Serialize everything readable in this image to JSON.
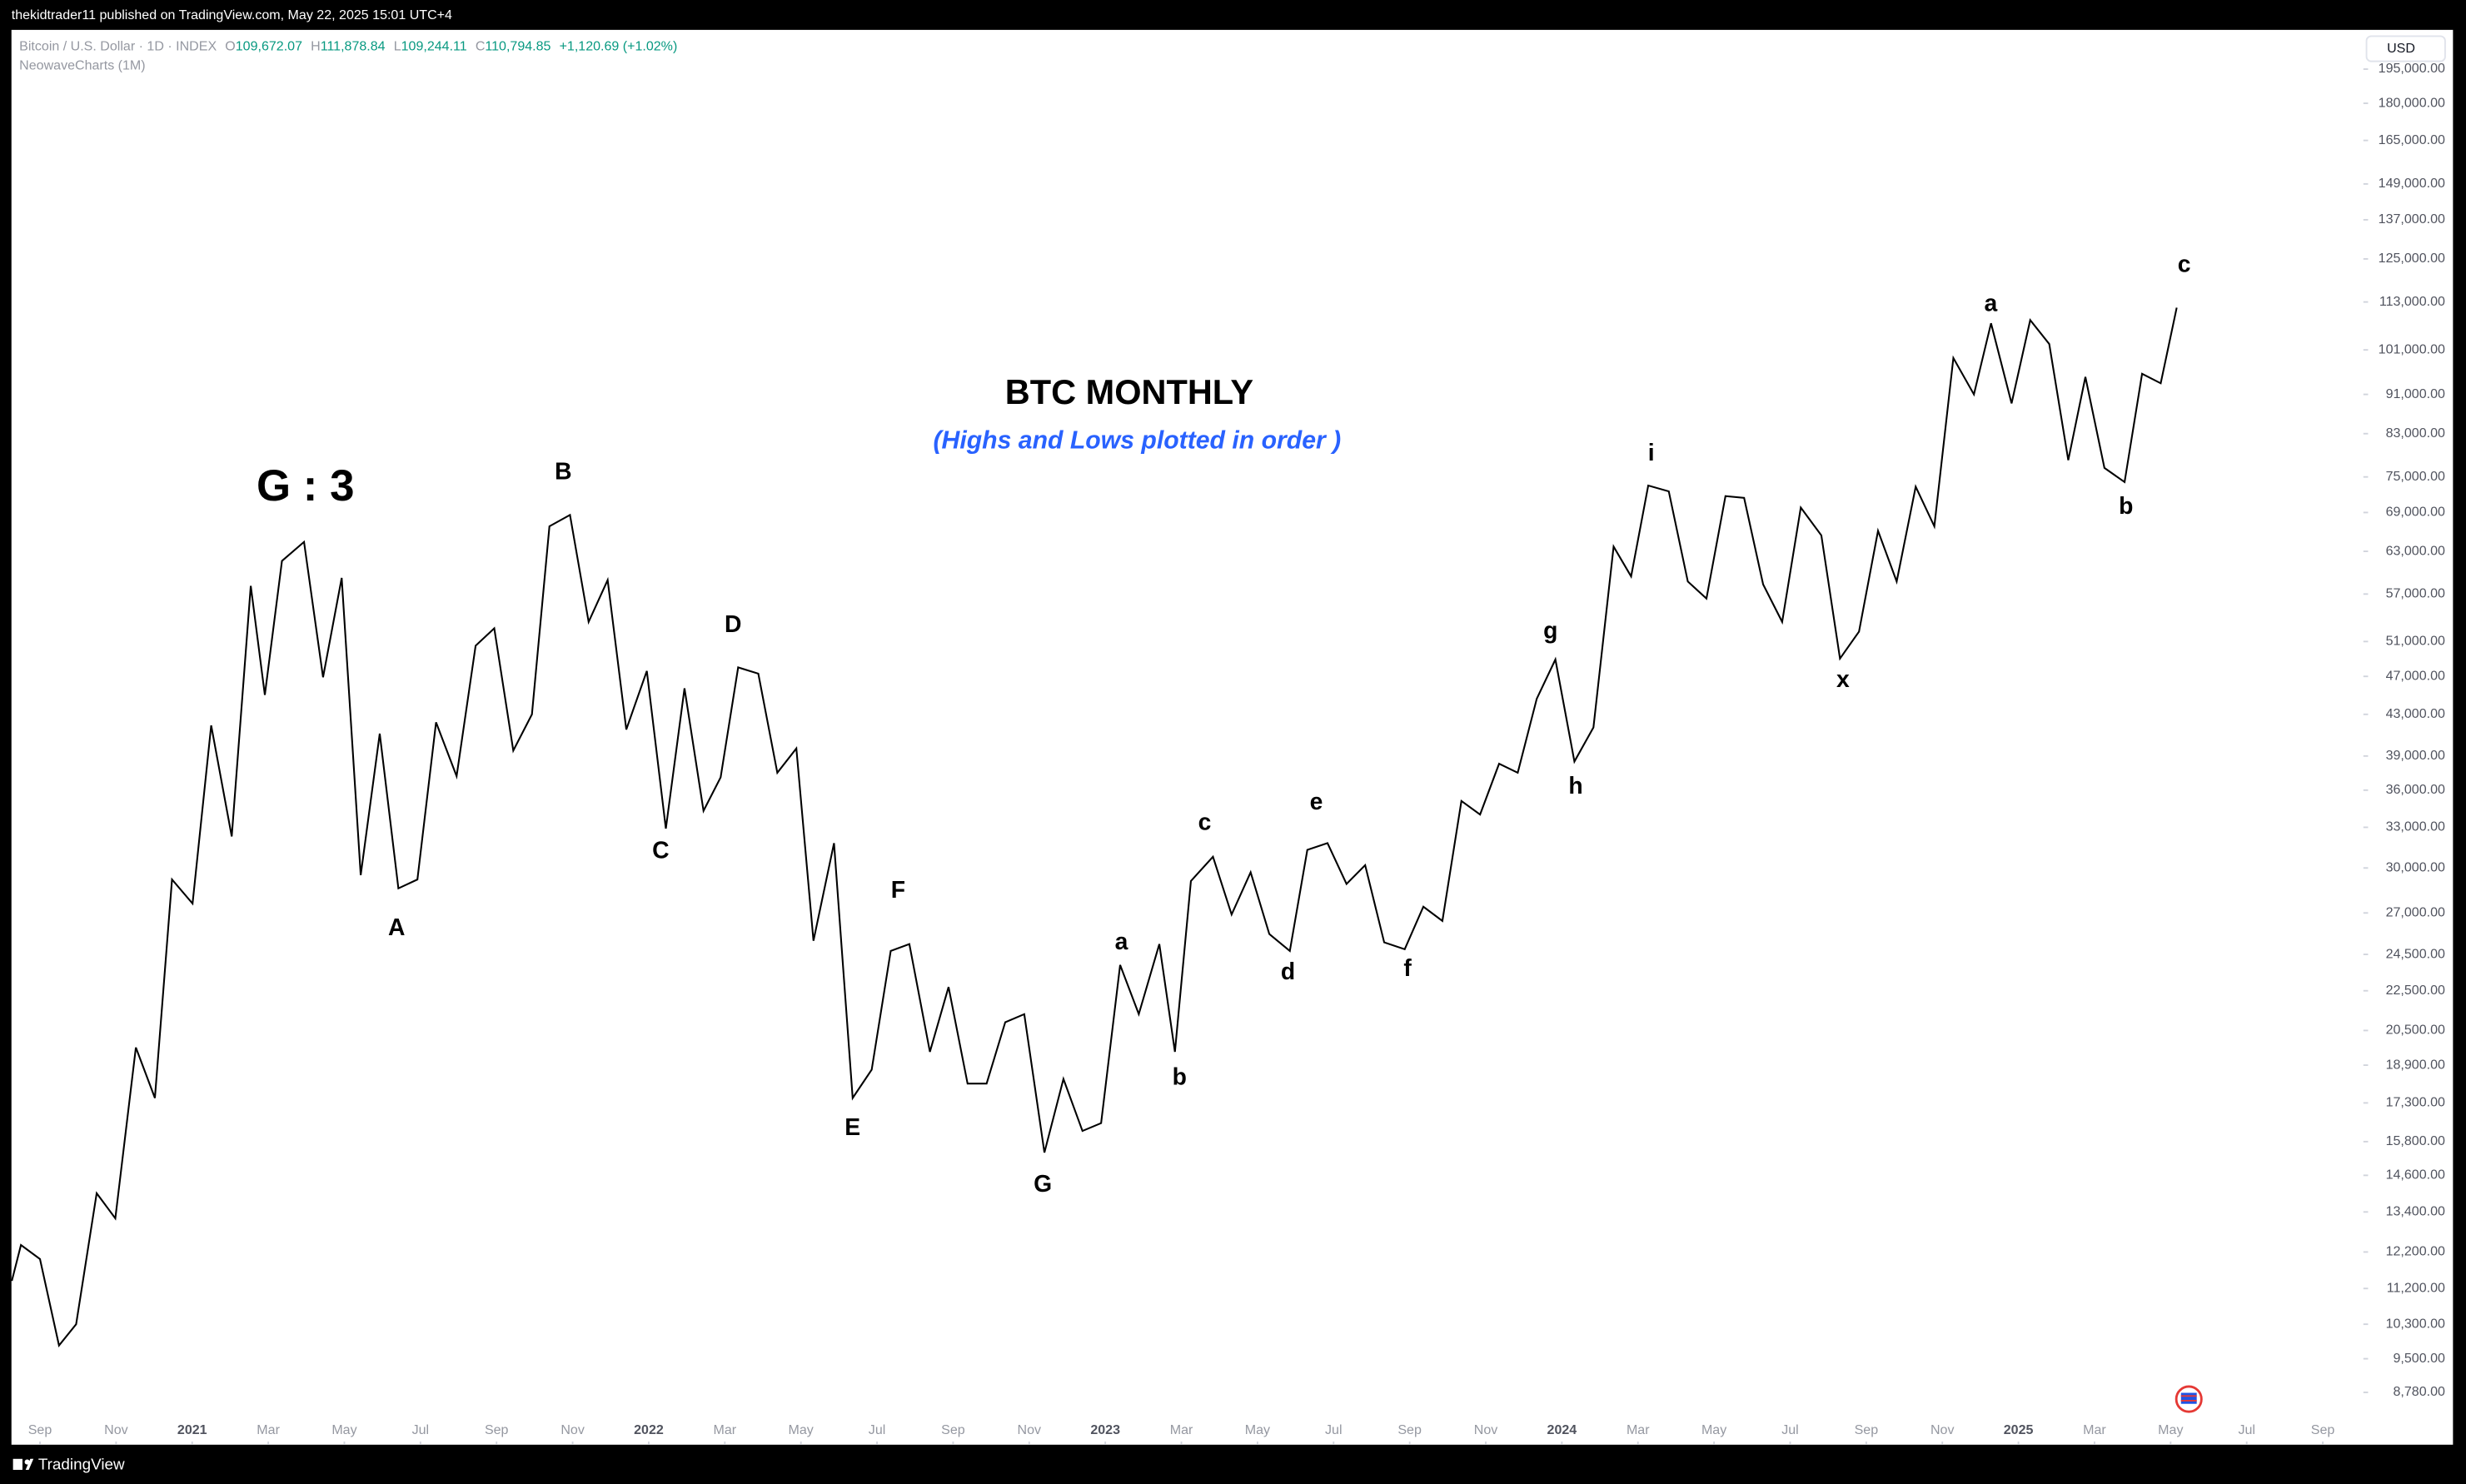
{
  "header": {
    "published": "thekidtrader11 published on TradingView.com, May 22, 2025 15:01 UTC+4",
    "symbol": "Bitcoin / U.S. Dollar · 1D · INDEX",
    "ohlc": [
      {
        "label": "O",
        "value": "109,672.07"
      },
      {
        "label": "H",
        "value": "111,878.84"
      },
      {
        "label": "L",
        "value": "109,244.11"
      },
      {
        "label": "C",
        "value": "110,794.85"
      }
    ],
    "change": "+1,120.69 (+1.02%)",
    "indicator": "NeowaveCharts (1M)",
    "currency": "USD"
  },
  "footer": {
    "brand": "TradingView"
  },
  "chart_data": {
    "type": "line",
    "title": "BTC MONTHLY",
    "subtitle": "(Highs and Lows plotted in order )",
    "degree_label": "G : 3",
    "wave_labels": [
      "A",
      "B",
      "C",
      "D",
      "E",
      "F",
      "G",
      "a",
      "b",
      "c",
      "d",
      "e",
      "f",
      "g",
      "h",
      "i",
      "x",
      "a",
      "b",
      "c"
    ],
    "color": "#000000",
    "log_scale": true,
    "grid": false,
    "x": [
      -0.74,
      -0.5,
      0,
      0.5,
      0.95,
      1.49,
      1.98,
      2.52,
      3.02,
      3.47,
      4.01,
      4.5,
      5.04,
      5.54,
      5.91,
      6.36,
      6.94,
      7.44,
      7.93,
      8.43,
      8.93,
      9.42,
      9.92,
      10.41,
      10.95,
      11.45,
      11.94,
      12.44,
      12.93,
      13.39,
      13.93,
      14.42,
      14.92,
      15.41,
      15.95,
      16.45,
      16.94,
      17.44,
      17.89,
      18.35,
      18.88,
      19.38,
      19.88,
      20.33,
      20.87,
      21.36,
      21.86,
      22.36,
      22.85,
      23.39,
      23.88,
      24.38,
      24.88,
      25.37,
      25.87,
      26.4,
      26.9,
      27.4,
      27.89,
      28.39,
      28.88,
      29.42,
      29.83,
      30.25,
      30.83,
      31.32,
      31.82,
      32.31,
      32.85,
      33.31,
      33.84,
      34.34,
      34.83,
      35.33,
      35.87,
      36.36,
      36.86,
      37.36,
      37.85,
      38.35,
      38.84,
      39.34,
      39.83,
      40.33,
      40.83,
      41.36,
      41.82,
      42.27,
      42.81,
      43.31,
      43.8,
      44.3,
      44.79,
      45.29,
      45.79,
      46.28,
      46.82,
      47.31,
      47.81,
      48.31,
      48.8,
      49.3,
      49.79,
      50.29,
      50.83,
      51.28,
      51.82,
      52.31,
      52.81,
      53.31,
      53.76,
      54.26,
      54.79,
      55.25,
      55.74,
      56.16
    ],
    "values": [
      11400,
      12400,
      12000,
      9800,
      10300,
      14000,
      13200,
      19700,
      17500,
      29200,
      27600,
      41900,
      32300,
      58100,
      45000,
      61600,
      64400,
      46900,
      59200,
      29500,
      41100,
      28600,
      29200,
      42200,
      37200,
      50500,
      52600,
      39500,
      43000,
      66800,
      68600,
      53400,
      58900,
      41500,
      47600,
      32900,
      45700,
      34300,
      37100,
      48000,
      47300,
      37500,
      39700,
      25300,
      31800,
      17500,
      18700,
      24700,
      25100,
      19500,
      22700,
      18100,
      18100,
      20900,
      21300,
      15400,
      18300,
      16200,
      16500,
      23900,
      21300,
      25100,
      19500,
      29100,
      30800,
      26900,
      29700,
      25700,
      24700,
      31300,
      31800,
      28900,
      30200,
      25200,
      24800,
      27400,
      26500,
      35100,
      34000,
      38300,
      37500,
      44600,
      48900,
      38500,
      41700,
      63700,
      59400,
      73500,
      72500,
      58700,
      56400,
      71700,
      71400,
      58300,
      53400,
      69800,
      65400,
      49000,
      52200,
      66100,
      58700,
      73300,
      66800,
      99100,
      91000,
      107500,
      89100,
      108300,
      102400,
      78000,
      94800,
      76600,
      74100,
      95500,
      93400,
      111500
    ],
    "xlim": [
      -0.75,
      61
    ],
    "xticks": [
      {
        "value": 0,
        "label": "Sep"
      },
      {
        "value": 2,
        "label": "Nov"
      },
      {
        "value": 4,
        "label": "2021"
      },
      {
        "value": 6,
        "label": "Mar"
      },
      {
        "value": 8,
        "label": "May"
      },
      {
        "value": 10,
        "label": "Jul"
      },
      {
        "value": 12,
        "label": "Sep"
      },
      {
        "value": 14,
        "label": "Nov"
      },
      {
        "value": 16,
        "label": "2022"
      },
      {
        "value": 18,
        "label": "Mar"
      },
      {
        "value": 20,
        "label": "May"
      },
      {
        "value": 22,
        "label": "Jul"
      },
      {
        "value": 24,
        "label": "Sep"
      },
      {
        "value": 26,
        "label": "Nov"
      },
      {
        "value": 28,
        "label": "2023"
      },
      {
        "value": 30,
        "label": "Mar"
      },
      {
        "value": 32,
        "label": "May"
      },
      {
        "value": 34,
        "label": "Jul"
      },
      {
        "value": 36,
        "label": "Sep"
      },
      {
        "value": 38,
        "label": "Nov"
      },
      {
        "value": 40,
        "label": "2024"
      },
      {
        "value": 42,
        "label": "Mar"
      },
      {
        "value": 44,
        "label": "May"
      },
      {
        "value": 46,
        "label": "Jul"
      },
      {
        "value": 48,
        "label": "Sep"
      },
      {
        "value": 50,
        "label": "Nov"
      },
      {
        "value": 52,
        "label": "2025"
      },
      {
        "value": 54,
        "label": "Mar"
      },
      {
        "value": 56,
        "label": "May"
      },
      {
        "value": 58,
        "label": "Jul"
      },
      {
        "value": 60,
        "label": "Sep"
      }
    ],
    "ylim": [
      8330,
      213000
    ],
    "yticks": [
      {
        "value": 195000,
        "label": "195,000.00"
      },
      {
        "value": 180000,
        "label": "180,000.00"
      },
      {
        "value": 165000,
        "label": "165,000.00"
      },
      {
        "value": 149000,
        "label": "149,000.00"
      },
      {
        "value": 137000,
        "label": "137,000.00"
      },
      {
        "value": 125000,
        "label": "125,000.00"
      },
      {
        "value": 113000,
        "label": "113,000.00"
      },
      {
        "value": 101000,
        "label": "101,000.00"
      },
      {
        "value": 91000,
        "label": "91,000.00"
      },
      {
        "value": 83000,
        "label": "83,000.00"
      },
      {
        "value": 75000,
        "label": "75,000.00"
      },
      {
        "value": 69000,
        "label": "69,000.00"
      },
      {
        "value": 63000,
        "label": "63,000.00"
      },
      {
        "value": 57000,
        "label": "57,000.00"
      },
      {
        "value": 51000,
        "label": "51,000.00"
      },
      {
        "value": 47000,
        "label": "47,000.00"
      },
      {
        "value": 43000,
        "label": "43,000.00"
      },
      {
        "value": 39000,
        "label": "39,000.00"
      },
      {
        "value": 36000,
        "label": "36,000.00"
      },
      {
        "value": 33000,
        "label": "33,000.00"
      },
      {
        "value": 30000,
        "label": "30,000.00"
      },
      {
        "value": 27000,
        "label": "27,000.00"
      },
      {
        "value": 24500,
        "label": "24,500.00"
      },
      {
        "value": 22500,
        "label": "22,500.00"
      },
      {
        "value": 20500,
        "label": "20,500.00"
      },
      {
        "value": 18900,
        "label": "18,900.00"
      },
      {
        "value": 17300,
        "label": "17,300.00"
      },
      {
        "value": 15800,
        "label": "15,800.00"
      },
      {
        "value": 14600,
        "label": "14,600.00"
      },
      {
        "value": 13400,
        "label": "13,400.00"
      },
      {
        "value": 12200,
        "label": "12,200.00"
      },
      {
        "value": 11200,
        "label": "11,200.00"
      },
      {
        "value": 10300,
        "label": "10,300.00"
      },
      {
        "value": 9500,
        "label": "9,500.00"
      },
      {
        "value": 8780,
        "label": "8,780.00"
      }
    ]
  }
}
